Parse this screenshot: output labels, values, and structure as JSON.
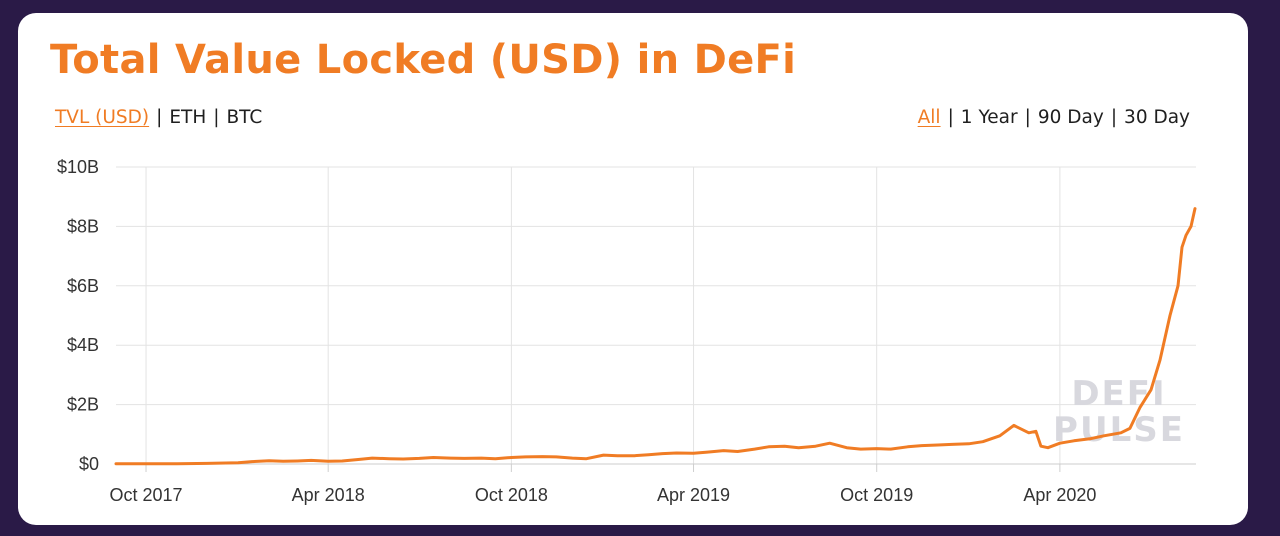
{
  "title": "Total Value Locked (USD) in DeFi",
  "metric_tabs": [
    {
      "label": "TVL (USD)",
      "active": true
    },
    {
      "label": "ETH",
      "active": false
    },
    {
      "label": "BTC",
      "active": false
    }
  ],
  "range_tabs": [
    {
      "label": "All",
      "active": true
    },
    {
      "label": "1 Year",
      "active": false
    },
    {
      "label": "90 Day",
      "active": false
    },
    {
      "label": "30 Day",
      "active": false
    }
  ],
  "separator": "|",
  "watermark": [
    "DEFI",
    "PULSE"
  ],
  "colors": {
    "accent": "#f07c24",
    "background": "#2a1a47",
    "card": "#ffffff",
    "grid": "#e3e3e3"
  },
  "chart_data": {
    "type": "line",
    "title": "Total Value Locked (USD) in DeFi",
    "xlabel": "",
    "ylabel": "",
    "x_tick_labels": [
      "Oct 2017",
      "Apr 2018",
      "Oct 2018",
      "Apr 2019",
      "Oct 2019",
      "Apr 2020"
    ],
    "x_ticks": [
      "2017-10-01",
      "2018-04-01",
      "2018-10-01",
      "2019-04-01",
      "2019-10-01",
      "2020-04-01"
    ],
    "y_tick_labels": [
      "$0",
      "$2B",
      "$4B",
      "$6B",
      "$8B",
      "$10B"
    ],
    "y_ticks": [
      0,
      2,
      4,
      6,
      8,
      10
    ],
    "y_unit": "billion USD",
    "xlim": [
      "2017-09-01",
      "2020-08-15"
    ],
    "ylim": [
      0,
      10
    ],
    "grid": true,
    "legend": "none",
    "series": [
      {
        "color": "#f07c24",
        "points": [
          [
            "2017-09-01",
            0.01
          ],
          [
            "2017-10-01",
            0.01
          ],
          [
            "2017-11-01",
            0.01
          ],
          [
            "2017-12-01",
            0.02
          ],
          [
            "2018-01-01",
            0.04
          ],
          [
            "2018-01-15",
            0.08
          ],
          [
            "2018-02-01",
            0.11
          ],
          [
            "2018-02-15",
            0.09
          ],
          [
            "2018-03-01",
            0.1
          ],
          [
            "2018-03-15",
            0.12
          ],
          [
            "2018-04-01",
            0.09
          ],
          [
            "2018-04-15",
            0.1
          ],
          [
            "2018-05-01",
            0.15
          ],
          [
            "2018-05-15",
            0.2
          ],
          [
            "2018-06-01",
            0.18
          ],
          [
            "2018-06-15",
            0.17
          ],
          [
            "2018-07-01",
            0.19
          ],
          [
            "2018-07-15",
            0.22
          ],
          [
            "2018-08-01",
            0.2
          ],
          [
            "2018-08-15",
            0.19
          ],
          [
            "2018-09-01",
            0.2
          ],
          [
            "2018-09-15",
            0.18
          ],
          [
            "2018-10-01",
            0.22
          ],
          [
            "2018-10-15",
            0.24
          ],
          [
            "2018-11-01",
            0.25
          ],
          [
            "2018-11-15",
            0.24
          ],
          [
            "2018-12-01",
            0.2
          ],
          [
            "2018-12-15",
            0.18
          ],
          [
            "2019-01-01",
            0.3
          ],
          [
            "2019-01-15",
            0.28
          ],
          [
            "2019-02-01",
            0.28
          ],
          [
            "2019-02-15",
            0.31
          ],
          [
            "2019-03-01",
            0.35
          ],
          [
            "2019-03-15",
            0.37
          ],
          [
            "2019-04-01",
            0.36
          ],
          [
            "2019-04-15",
            0.4
          ],
          [
            "2019-05-01",
            0.45
          ],
          [
            "2019-05-15",
            0.42
          ],
          [
            "2019-06-01",
            0.5
          ],
          [
            "2019-06-15",
            0.58
          ],
          [
            "2019-07-01",
            0.6
          ],
          [
            "2019-07-15",
            0.55
          ],
          [
            "2019-08-01",
            0.6
          ],
          [
            "2019-08-15",
            0.7
          ],
          [
            "2019-09-01",
            0.55
          ],
          [
            "2019-09-15",
            0.5
          ],
          [
            "2019-10-01",
            0.52
          ],
          [
            "2019-10-15",
            0.5
          ],
          [
            "2019-11-01",
            0.58
          ],
          [
            "2019-11-15",
            0.62
          ],
          [
            "2019-12-01",
            0.64
          ],
          [
            "2019-12-15",
            0.66
          ],
          [
            "2020-01-01",
            0.68
          ],
          [
            "2020-01-15",
            0.75
          ],
          [
            "2020-02-01",
            0.95
          ],
          [
            "2020-02-15",
            1.3
          ],
          [
            "2020-03-01",
            1.05
          ],
          [
            "2020-03-08",
            1.1
          ],
          [
            "2020-03-13",
            0.6
          ],
          [
            "2020-03-20",
            0.55
          ],
          [
            "2020-04-01",
            0.7
          ],
          [
            "2020-04-15",
            0.78
          ],
          [
            "2020-05-01",
            0.85
          ],
          [
            "2020-05-15",
            0.95
          ],
          [
            "2020-06-01",
            1.05
          ],
          [
            "2020-06-10",
            1.2
          ],
          [
            "2020-06-20",
            1.9
          ],
          [
            "2020-07-01",
            2.5
          ],
          [
            "2020-07-10",
            3.5
          ],
          [
            "2020-07-20",
            5.0
          ],
          [
            "2020-07-28",
            6.0
          ],
          [
            "2020-08-01",
            7.3
          ],
          [
            "2020-08-05",
            7.7
          ],
          [
            "2020-08-10",
            8.0
          ],
          [
            "2020-08-14",
            8.6
          ]
        ]
      }
    ]
  }
}
